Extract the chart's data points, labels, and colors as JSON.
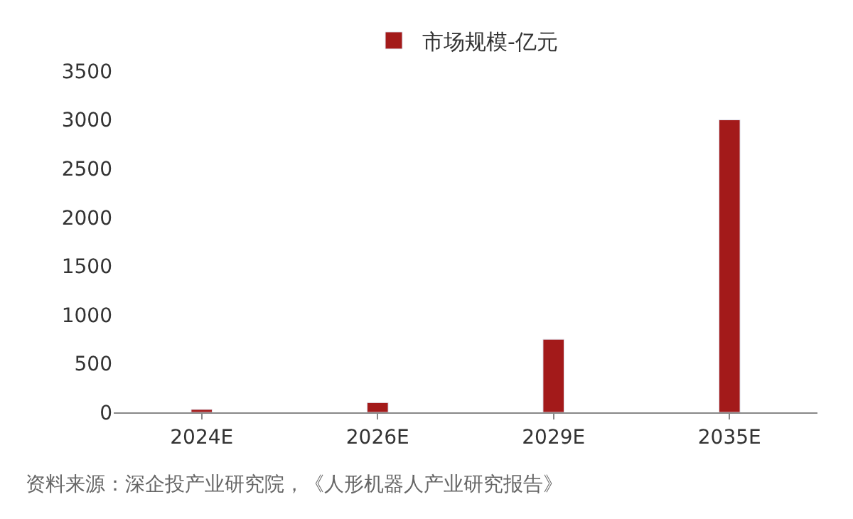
{
  "chart_data": {
    "type": "bar",
    "categories": [
      "2024E",
      "2026E",
      "2029E",
      "2035E"
    ],
    "series": [
      {
        "name": "市场规模-亿元",
        "color": "#a31a1a",
        "values": [
          30,
          100,
          750,
          3000
        ]
      }
    ],
    "ylim": [
      0,
      3500
    ],
    "yticks": [
      0,
      500,
      1000,
      1500,
      2000,
      2500,
      3000,
      3500
    ],
    "legend": "top",
    "annotations": [
      "资料来源：深企投产业研究院，《人形机器人产业研究报告》"
    ]
  }
}
